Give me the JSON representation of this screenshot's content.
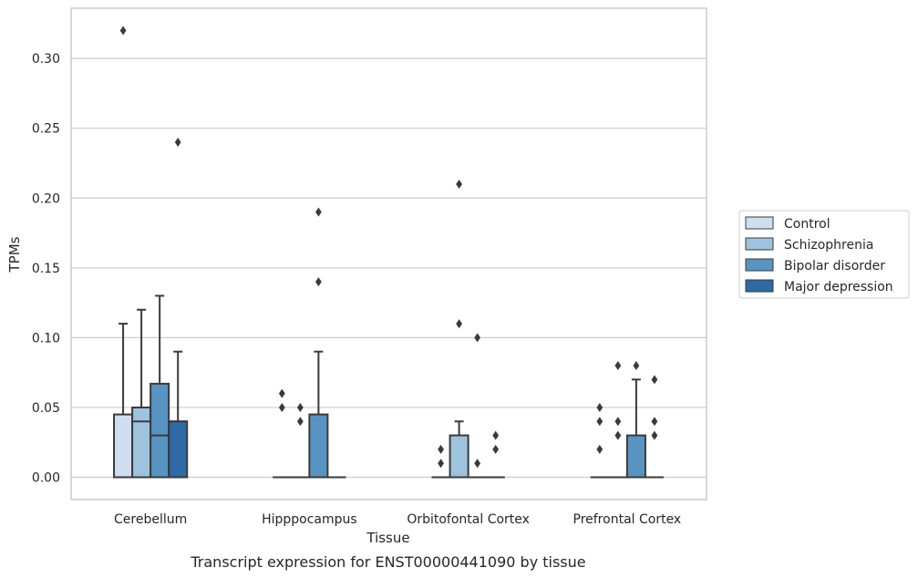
{
  "chart_data": {
    "type": "box",
    "caption": "Transcript expression for ENST00000441090 by tissue",
    "xlabel": "Tissue",
    "ylabel": "TPMs",
    "ylim": [
      -0.016,
      0.336
    ],
    "yticks": [
      "0.00",
      "0.05",
      "0.10",
      "0.15",
      "0.20",
      "0.25",
      "0.30"
    ],
    "grid": "horizontal",
    "legend_position": "right",
    "categories": [
      "Cerebellum",
      "Hipppocampus",
      "Orbitofontal Cortex",
      "Prefrontal Cortex"
    ],
    "series": [
      {
        "name": "Control",
        "color": "#cfdeef",
        "boxes": [
          {
            "q1": 0.0,
            "median": 0.0,
            "q3": 0.045,
            "whisker_low": 0.0,
            "whisker_high": 0.11,
            "outliers": [
              0.32
            ]
          },
          {
            "q1": 0.0,
            "median": 0.0,
            "q3": 0.0,
            "whisker_low": 0.0,
            "whisker_high": 0.0,
            "outliers": [
              0.05,
              0.06
            ]
          },
          {
            "q1": 0.0,
            "median": 0.0,
            "q3": 0.0,
            "whisker_low": 0.0,
            "whisker_high": 0.0,
            "outliers": [
              0.01,
              0.02
            ]
          },
          {
            "q1": 0.0,
            "median": 0.0,
            "q3": 0.0,
            "whisker_low": 0.0,
            "whisker_high": 0.0,
            "outliers": [
              0.02,
              0.04,
              0.05
            ]
          }
        ]
      },
      {
        "name": "Schizophrenia",
        "color": "#9dc3de",
        "boxes": [
          {
            "q1": 0.0,
            "median": 0.04,
            "q3": 0.05,
            "whisker_low": 0.0,
            "whisker_high": 0.12,
            "outliers": []
          },
          {
            "q1": 0.0,
            "median": 0.0,
            "q3": 0.0,
            "whisker_low": 0.0,
            "whisker_high": 0.0,
            "outliers": [
              0.04,
              0.05
            ]
          },
          {
            "q1": 0.0,
            "median": 0.0,
            "q3": 0.03,
            "whisker_low": 0.0,
            "whisker_high": 0.04,
            "outliers": [
              0.11,
              0.21
            ]
          },
          {
            "q1": 0.0,
            "median": 0.0,
            "q3": 0.0,
            "whisker_low": 0.0,
            "whisker_high": 0.0,
            "outliers": [
              0.03,
              0.04,
              0.08
            ]
          }
        ]
      },
      {
        "name": "Bipolar disorder",
        "color": "#5894c2",
        "boxes": [
          {
            "q1": 0.0,
            "median": 0.03,
            "q3": 0.067,
            "whisker_low": 0.0,
            "whisker_high": 0.13,
            "outliers": []
          },
          {
            "q1": 0.0,
            "median": 0.0,
            "q3": 0.045,
            "whisker_low": 0.0,
            "whisker_high": 0.09,
            "outliers": [
              0.14,
              0.19
            ]
          },
          {
            "q1": 0.0,
            "median": 0.0,
            "q3": 0.0,
            "whisker_low": 0.0,
            "whisker_high": 0.0,
            "outliers": [
              0.01,
              0.1
            ]
          },
          {
            "q1": 0.0,
            "median": 0.0,
            "q3": 0.03,
            "whisker_low": 0.0,
            "whisker_high": 0.07,
            "outliers": [
              0.08
            ]
          }
        ]
      },
      {
        "name": "Major depression",
        "color": "#2d6aa6",
        "boxes": [
          {
            "q1": 0.0,
            "median": 0.04,
            "q3": 0.04,
            "whisker_low": 0.0,
            "whisker_high": 0.09,
            "outliers": [
              0.24
            ]
          },
          {
            "q1": 0.0,
            "median": 0.0,
            "q3": 0.0,
            "whisker_low": 0.0,
            "whisker_high": 0.0,
            "outliers": []
          },
          {
            "q1": 0.0,
            "median": 0.0,
            "q3": 0.0,
            "whisker_low": 0.0,
            "whisker_high": 0.0,
            "outliers": [
              0.02,
              0.03
            ]
          },
          {
            "q1": 0.0,
            "median": 0.0,
            "q3": 0.0,
            "whisker_low": 0.0,
            "whisker_high": 0.0,
            "outliers": [
              0.03,
              0.04,
              0.07
            ]
          }
        ]
      }
    ]
  }
}
